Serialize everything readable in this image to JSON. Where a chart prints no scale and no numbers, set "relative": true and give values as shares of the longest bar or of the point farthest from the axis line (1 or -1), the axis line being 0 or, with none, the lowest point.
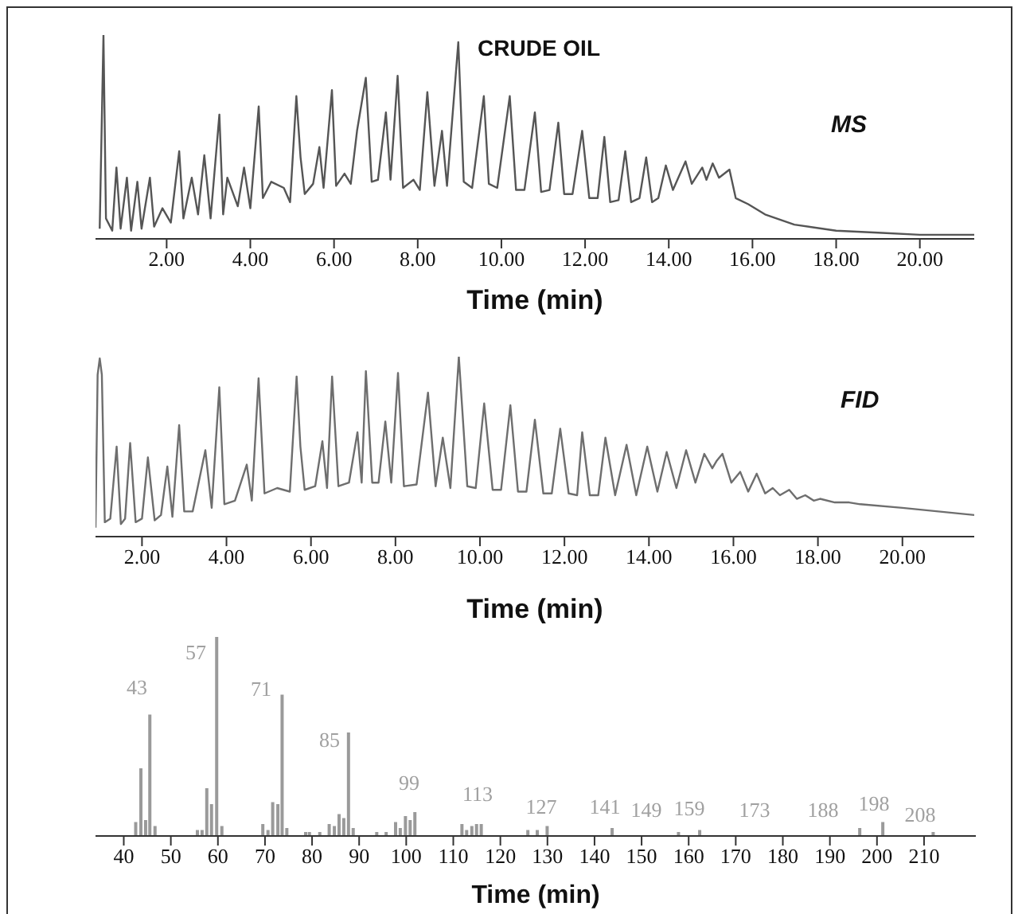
{
  "chart_data": [
    {
      "type": "line",
      "title": "CRUDE OIL",
      "xlabel": "Time (min)",
      "relative": true,
      "marker": "none",
      "xlim": [
        0.3,
        21.3
      ],
      "xticks": [
        {
          "value": 2,
          "label": "2.00"
        },
        {
          "value": 4,
          "label": "4.00"
        },
        {
          "value": 6,
          "label": "6.00"
        },
        {
          "value": 8,
          "label": "8.00"
        },
        {
          "value": 10,
          "label": "10.00"
        },
        {
          "value": 12,
          "label": "12.00"
        },
        {
          "value": 14,
          "label": "14.00"
        },
        {
          "value": 16,
          "label": "16.00"
        },
        {
          "value": 18,
          "label": "18.00"
        },
        {
          "value": 20,
          "label": "20.00"
        }
      ],
      "x": [
        0.4,
        0.49,
        0.55,
        0.7,
        0.8,
        0.9,
        1.05,
        1.15,
        1.3,
        1.4,
        1.6,
        1.7,
        1.9,
        2.1,
        2.3,
        2.4,
        2.6,
        2.75,
        2.9,
        3.05,
        3.26,
        3.35,
        3.45,
        3.7,
        3.85,
        4.0,
        4.2,
        4.3,
        4.5,
        4.8,
        4.95,
        5.1,
        5.2,
        5.3,
        5.5,
        5.65,
        5.75,
        5.95,
        6.05,
        6.25,
        6.4,
        6.55,
        6.76,
        6.9,
        7.05,
        7.24,
        7.35,
        7.52,
        7.65,
        7.9,
        8.05,
        8.23,
        8.4,
        8.58,
        8.7,
        8.97,
        9.1,
        9.3,
        9.58,
        9.7,
        9.9,
        10.2,
        10.35,
        10.55,
        10.8,
        10.95,
        11.15,
        11.36,
        11.5,
        11.7,
        11.93,
        12.1,
        12.3,
        12.46,
        12.6,
        12.8,
        12.96,
        13.1,
        13.3,
        13.46,
        13.6,
        13.75,
        13.93,
        14.1,
        14.4,
        14.55,
        14.8,
        14.9,
        15.05,
        15.2,
        15.45,
        15.6,
        15.9,
        16.3,
        17.0,
        18.0,
        19.0,
        20.0,
        21.3
      ],
      "series": [
        {
          "name": "MS",
          "color": "#555555",
          "values": [
            0.05,
            1.0,
            0.1,
            0.04,
            0.35,
            0.05,
            0.3,
            0.04,
            0.28,
            0.05,
            0.3,
            0.06,
            0.15,
            0.08,
            0.43,
            0.1,
            0.3,
            0.12,
            0.41,
            0.1,
            0.61,
            0.12,
            0.3,
            0.16,
            0.35,
            0.15,
            0.65,
            0.2,
            0.28,
            0.25,
            0.18,
            0.7,
            0.4,
            0.22,
            0.27,
            0.45,
            0.25,
            0.73,
            0.26,
            0.32,
            0.27,
            0.53,
            0.79,
            0.28,
            0.29,
            0.62,
            0.29,
            0.8,
            0.25,
            0.29,
            0.24,
            0.72,
            0.26,
            0.53,
            0.26,
            0.965,
            0.28,
            0.25,
            0.7,
            0.27,
            0.25,
            0.7,
            0.24,
            0.24,
            0.62,
            0.23,
            0.24,
            0.57,
            0.22,
            0.22,
            0.53,
            0.2,
            0.2,
            0.5,
            0.18,
            0.19,
            0.43,
            0.18,
            0.2,
            0.4,
            0.18,
            0.2,
            0.36,
            0.24,
            0.38,
            0.27,
            0.35,
            0.29,
            0.37,
            0.3,
            0.34,
            0.2,
            0.17,
            0.12,
            0.07,
            0.04,
            0.03,
            0.02,
            0.02
          ]
        }
      ]
    },
    {
      "type": "line",
      "xlabel": "Time (min)",
      "relative": true,
      "marker": "none",
      "xlim": [
        0.9,
        21.7
      ],
      "xticks": [
        {
          "value": 2,
          "label": "2.00"
        },
        {
          "value": 4,
          "label": "4.00"
        },
        {
          "value": 6,
          "label": "6.00"
        },
        {
          "value": 8,
          "label": "8.00"
        },
        {
          "value": 10,
          "label": "10.00"
        },
        {
          "value": 12,
          "label": "12.00"
        },
        {
          "value": 14,
          "label": "14.00"
        },
        {
          "value": 16,
          "label": "16.00"
        },
        {
          "value": 18,
          "label": "18.00"
        },
        {
          "value": 20,
          "label": "20.00"
        }
      ],
      "x": [
        0.9,
        0.95,
        1.0,
        1.05,
        1.12,
        1.25,
        1.4,
        1.5,
        1.6,
        1.72,
        1.85,
        2.0,
        2.14,
        2.3,
        2.45,
        2.6,
        2.72,
        2.88,
        3.0,
        3.2,
        3.5,
        3.65,
        3.83,
        3.95,
        4.2,
        4.48,
        4.6,
        4.76,
        4.9,
        5.2,
        5.5,
        5.66,
        5.75,
        5.85,
        6.1,
        6.27,
        6.38,
        6.5,
        6.65,
        6.9,
        7.1,
        7.2,
        7.3,
        7.45,
        7.6,
        7.76,
        7.9,
        8.06,
        8.2,
        8.5,
        8.77,
        8.95,
        9.12,
        9.3,
        9.5,
        9.7,
        9.9,
        10.1,
        10.3,
        10.5,
        10.72,
        10.9,
        11.1,
        11.3,
        11.5,
        11.7,
        11.9,
        12.1,
        12.3,
        12.42,
        12.6,
        12.8,
        12.97,
        13.2,
        13.47,
        13.7,
        13.96,
        14.2,
        14.42,
        14.65,
        14.88,
        15.1,
        15.31,
        15.5,
        15.6,
        15.74,
        15.95,
        16.16,
        16.35,
        16.55,
        16.75,
        16.93,
        17.1,
        17.32,
        17.5,
        17.7,
        17.9,
        18.05,
        18.4,
        18.74,
        19.0,
        20.0,
        21.7
      ],
      "series": [
        {
          "name": "FID",
          "color": "#6e6e6e",
          "values": [
            0.05,
            0.9,
            0.99,
            0.9,
            0.08,
            0.1,
            0.5,
            0.07,
            0.1,
            0.52,
            0.08,
            0.1,
            0.44,
            0.09,
            0.12,
            0.39,
            0.11,
            0.62,
            0.14,
            0.14,
            0.48,
            0.16,
            0.83,
            0.18,
            0.2,
            0.4,
            0.2,
            0.88,
            0.24,
            0.27,
            0.25,
            0.89,
            0.5,
            0.26,
            0.28,
            0.53,
            0.27,
            0.89,
            0.28,
            0.3,
            0.58,
            0.3,
            0.92,
            0.3,
            0.3,
            0.64,
            0.3,
            0.91,
            0.28,
            0.29,
            0.8,
            0.28,
            0.55,
            0.27,
            1.0,
            0.28,
            0.27,
            0.74,
            0.26,
            0.26,
            0.73,
            0.25,
            0.25,
            0.65,
            0.24,
            0.24,
            0.6,
            0.24,
            0.23,
            0.58,
            0.23,
            0.23,
            0.55,
            0.23,
            0.51,
            0.23,
            0.5,
            0.25,
            0.47,
            0.27,
            0.48,
            0.3,
            0.46,
            0.38,
            0.42,
            0.46,
            0.3,
            0.36,
            0.25,
            0.35,
            0.24,
            0.27,
            0.23,
            0.26,
            0.21,
            0.23,
            0.2,
            0.21,
            0.19,
            0.19,
            0.18,
            0.16,
            0.12
          ]
        }
      ]
    },
    {
      "type": "bar",
      "xlabel": "Time (min)",
      "relative": true,
      "color": "#9a9a9a",
      "xlim": [
        34,
        221
      ],
      "xticks": [
        40,
        50,
        60,
        70,
        80,
        90,
        100,
        110,
        120,
        130,
        140,
        150,
        160,
        170,
        180,
        190,
        200,
        210
      ],
      "x": [
        42.6,
        43.7,
        44.7,
        45.6,
        46.7,
        55.7,
        56.7,
        57.7,
        58.7,
        59.8,
        60.9,
        69.6,
        70.7,
        71.7,
        72.8,
        73.7,
        74.7,
        78.7,
        79.5,
        81.7,
        83.7,
        84.8,
        85.8,
        86.8,
        87.8,
        88.8,
        93.8,
        95.8,
        97.8,
        98.8,
        99.9,
        100.9,
        101.9,
        111.9,
        112.9,
        114,
        115,
        116,
        125.9,
        127.9,
        130,
        143.8,
        157.9,
        162.4,
        196.4,
        201.3,
        212
      ],
      "values": [
        0.07,
        0.34,
        0.08,
        0.61,
        0.05,
        0.03,
        0.03,
        0.24,
        0.16,
        1.0,
        0.05,
        0.06,
        0.03,
        0.17,
        0.16,
        0.71,
        0.04,
        0.02,
        0.02,
        0.02,
        0.06,
        0.05,
        0.11,
        0.09,
        0.52,
        0.04,
        0.02,
        0.02,
        0.07,
        0.04,
        0.1,
        0.08,
        0.12,
        0.06,
        0.03,
        0.05,
        0.06,
        0.06,
        0.03,
        0.03,
        0.05,
        0.04,
        0.02,
        0.03,
        0.04,
        0.07,
        0.02
      ],
      "annotations": [
        "43",
        "57",
        "71",
        "85",
        "99",
        "113",
        "127",
        "141",
        "149",
        "159",
        "173",
        "188",
        "198",
        "208"
      ]
    }
  ]
}
